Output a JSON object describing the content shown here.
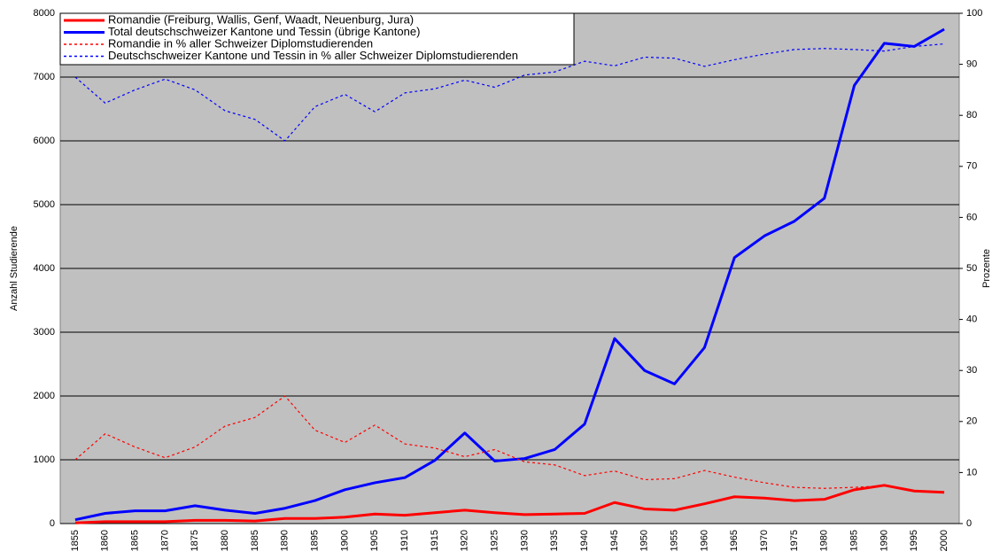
{
  "chart_data": {
    "type": "line",
    "ylabel": "Anzahl Studierende",
    "y2label": "Prozente",
    "categories": [
      "1855",
      "1860",
      "1865",
      "1870",
      "1875",
      "1880",
      "1885",
      "1890",
      "1895",
      "1900",
      "1905",
      "1910",
      "1915",
      "1920",
      "1925",
      "1930",
      "1935",
      "1940",
      "1945",
      "1950",
      "1955",
      "1960",
      "1965",
      "1970",
      "1975",
      "1980",
      "1985",
      "1990",
      "1995",
      "2000"
    ],
    "ylim": [
      0,
      8000
    ],
    "yticks": [
      0,
      1000,
      2000,
      3000,
      4000,
      5000,
      6000,
      7000,
      8000
    ],
    "y2lim": [
      0,
      100
    ],
    "y2ticks": [
      0,
      10,
      20,
      30,
      40,
      50,
      60,
      70,
      80,
      90,
      100
    ],
    "grid": true,
    "legend": "top-left",
    "series": [
      {
        "name": "Romandie (Freiburg, Wallis, Genf, Waadt, Neuenburg, Jura)",
        "color": "#ff0000",
        "style": "solid",
        "values": [
          10,
          30,
          30,
          30,
          50,
          50,
          40,
          80,
          80,
          100,
          150,
          130,
          170,
          210,
          170,
          140,
          150,
          160,
          330,
          230,
          210,
          310,
          420,
          400,
          360,
          380,
          530,
          600,
          510,
          490
        ]
      },
      {
        "name": "Total deutschschweizer Kantone und Tessin (übrige Kantone)",
        "color": "#0000ff",
        "style": "solid",
        "values": [
          60,
          160,
          200,
          200,
          280,
          210,
          160,
          240,
          360,
          530,
          640,
          720,
          990,
          1420,
          980,
          1020,
          1160,
          1560,
          2900,
          2400,
          2190,
          2760,
          4170,
          4510,
          4740,
          5100,
          6870,
          7530,
          7480,
          7750
        ]
      },
      {
        "name": "Romandie in % aller Schweizer Diplomstudierenden",
        "color": "#ff0000",
        "style": "dotted",
        "axis": "y2",
        "values": [
          12.5,
          17.6,
          15,
          12.9,
          15,
          19.1,
          20.8,
          25,
          18.3,
          15.9,
          19.3,
          15.6,
          14.8,
          13.1,
          14.5,
          12.1,
          11.5,
          9.4,
          10.3,
          8.6,
          8.8,
          10.4,
          9.1,
          8,
          7.1,
          6.9,
          7.1,
          7.4,
          6.5,
          6
        ]
      },
      {
        "name": "Deutschschweizer Kantone und Tessin in % aller Schweizer Diplomstudierenden",
        "color": "#0000ff",
        "style": "dotted",
        "axis": "y2",
        "values": [
          87.5,
          82.4,
          85,
          87.1,
          85,
          80.9,
          79.2,
          75,
          81.7,
          84.1,
          80.7,
          84.4,
          85.2,
          86.9,
          85.5,
          87.9,
          88.5,
          90.6,
          89.7,
          91.4,
          91.2,
          89.6,
          90.9,
          92,
          92.9,
          93.1,
          92.9,
          92.6,
          93.5,
          94
        ]
      }
    ]
  }
}
